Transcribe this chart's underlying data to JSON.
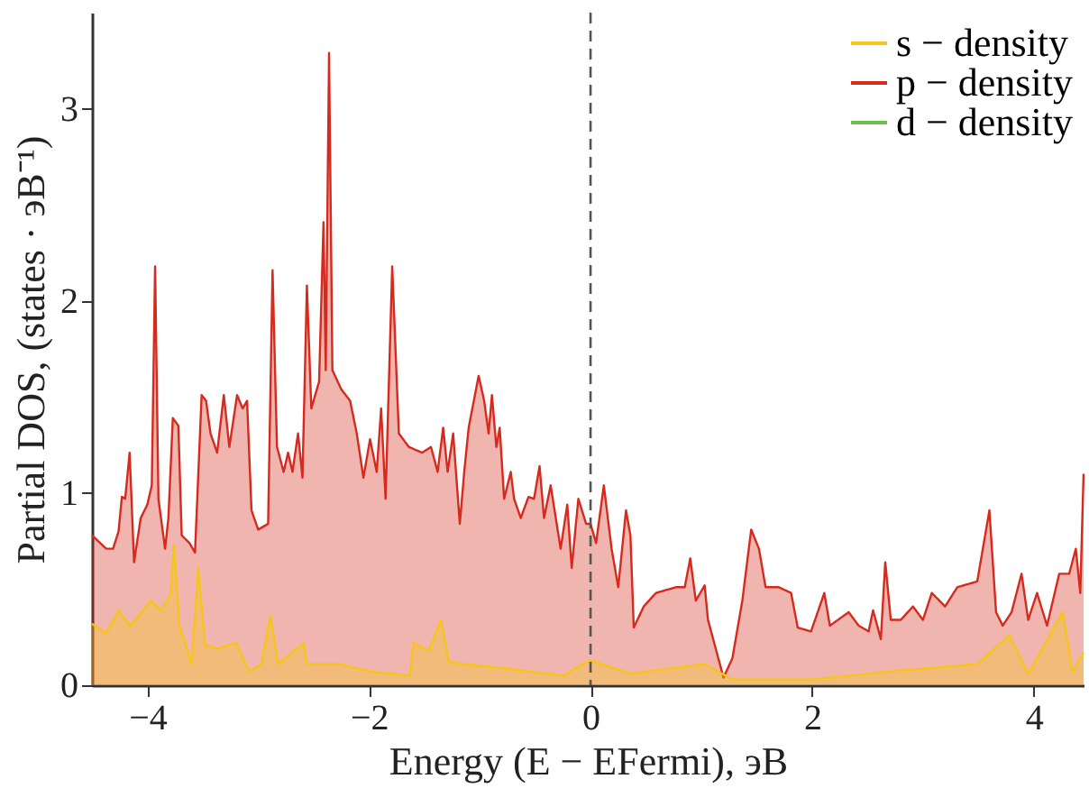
{
  "chart_data": {
    "type": "area",
    "xlabel": "Energy (E − EFermi), эВ",
    "ylabel": "Partial DOS, (states · эВ⁻¹)",
    "xlim": [
      -4.5,
      4.45
    ],
    "ylim": [
      0,
      3.5
    ],
    "xticks": [
      {
        "value": -4,
        "label": "−4"
      },
      {
        "value": -2,
        "label": "−2"
      },
      0,
      2,
      4
    ],
    "yticks": [
      0,
      1,
      2,
      3
    ],
    "grid": false,
    "legend": "top right",
    "marker": "none",
    "line_style": "solid",
    "ref_lines": [
      {
        "axis": "x",
        "value": 0,
        "label": null,
        "color": "#555555",
        "line_style": "dashed"
      }
    ],
    "series": [
      {
        "name": "s − density",
        "color": "#f5c518",
        "x": [
          -4.5,
          -4.37,
          -4.26,
          -4.16,
          -4.05,
          -3.97,
          -3.88,
          -3.79,
          -3.76,
          -3.71,
          -3.6,
          -3.54,
          -3.48,
          -3.37,
          -3.2,
          -3.08,
          -2.97,
          -2.89,
          -2.82,
          -2.59,
          -2.56,
          -2.27,
          -1.98,
          -1.63,
          -1.6,
          -1.46,
          -1.35,
          -1.28,
          -0.82,
          -0.24,
          -0.07,
          0.0,
          0.36,
          1.03,
          1.28,
          1.99,
          2.68,
          3.49,
          3.78,
          3.95,
          4.26,
          4.35,
          4.45
        ],
        "values": [
          0.32,
          0.27,
          0.39,
          0.31,
          0.38,
          0.44,
          0.39,
          0.47,
          0.73,
          0.31,
          0.11,
          0.61,
          0.21,
          0.19,
          0.22,
          0.07,
          0.11,
          0.36,
          0.11,
          0.22,
          0.11,
          0.11,
          0.07,
          0.05,
          0.22,
          0.18,
          0.34,
          0.12,
          0.09,
          0.05,
          0.11,
          0.13,
          0.06,
          0.11,
          0.03,
          0.03,
          0.07,
          0.11,
          0.26,
          0.06,
          0.38,
          0.07,
          0.17
        ]
      },
      {
        "name": "p − density",
        "color": "#d62a1e",
        "x": [
          -4.5,
          -4.37,
          -4.31,
          -4.26,
          -4.23,
          -4.2,
          -4.16,
          -4.12,
          -4.06,
          -4.0,
          -3.96,
          -3.93,
          -3.9,
          -3.84,
          -3.81,
          -3.77,
          -3.72,
          -3.69,
          -3.62,
          -3.57,
          -3.51,
          -3.47,
          -3.43,
          -3.37,
          -3.31,
          -3.26,
          -3.19,
          -3.14,
          -3.1,
          -3.06,
          -3.0,
          -2.91,
          -2.87,
          -2.83,
          -2.77,
          -2.73,
          -2.69,
          -2.64,
          -2.6,
          -2.56,
          -2.52,
          -2.45,
          -2.41,
          -2.39,
          -2.36,
          -2.33,
          -2.25,
          -2.17,
          -2.11,
          -2.05,
          -1.99,
          -1.93,
          -1.89,
          -1.85,
          -1.79,
          -1.73,
          -1.64,
          -1.52,
          -1.44,
          -1.38,
          -1.33,
          -1.29,
          -1.24,
          -1.18,
          -1.14,
          -1.1,
          -1.01,
          -0.96,
          -0.92,
          -0.89,
          -0.85,
          -0.82,
          -0.78,
          -0.72,
          -0.69,
          -0.63,
          -0.56,
          -0.51,
          -0.46,
          -0.42,
          -0.36,
          -0.27,
          -0.21,
          -0.17,
          -0.11,
          -0.04,
          0.0,
          0.05,
          0.12,
          0.19,
          0.25,
          0.32,
          0.36,
          0.39,
          0.48,
          0.59,
          0.77,
          0.85,
          0.9,
          0.95,
          1.03,
          1.06,
          1.2,
          1.28,
          1.37,
          1.45,
          1.52,
          1.58,
          1.7,
          1.81,
          1.87,
          1.99,
          2.11,
          2.16,
          2.33,
          2.42,
          2.51,
          2.55,
          2.62,
          2.66,
          2.71,
          2.8,
          2.91,
          3.0,
          3.08,
          3.2,
          3.31,
          3.49,
          3.6,
          3.66,
          3.72,
          3.8,
          3.89,
          3.95,
          4.03,
          4.12,
          4.23,
          4.32,
          4.38,
          4.42,
          4.45
        ],
        "values": [
          0.78,
          0.71,
          0.71,
          0.8,
          0.98,
          0.97,
          1.21,
          0.64,
          0.87,
          0.94,
          1.04,
          2.18,
          0.97,
          0.71,
          0.87,
          1.39,
          1.35,
          0.78,
          0.74,
          0.69,
          1.51,
          1.48,
          1.31,
          1.21,
          1.51,
          1.24,
          1.51,
          1.44,
          1.48,
          0.91,
          0.81,
          0.84,
          2.16,
          1.24,
          1.11,
          1.21,
          1.11,
          1.31,
          1.08,
          2.08,
          1.44,
          1.58,
          2.41,
          1.64,
          3.29,
          1.64,
          1.54,
          1.48,
          1.31,
          1.08,
          1.28,
          1.11,
          1.44,
          0.97,
          2.18,
          1.31,
          1.24,
          1.21,
          1.24,
          1.11,
          1.34,
          1.11,
          1.31,
          0.84,
          1.11,
          1.34,
          1.61,
          1.48,
          1.31,
          1.51,
          1.24,
          1.34,
          0.97,
          1.11,
          0.97,
          0.87,
          0.98,
          0.97,
          1.14,
          0.87,
          1.04,
          0.71,
          0.94,
          0.61,
          0.97,
          0.84,
          0.84,
          0.74,
          1.04,
          0.71,
          0.51,
          0.91,
          0.78,
          0.3,
          0.41,
          0.48,
          0.51,
          0.51,
          0.66,
          0.44,
          0.52,
          0.34,
          0.04,
          0.14,
          0.44,
          0.81,
          0.71,
          0.51,
          0.51,
          0.48,
          0.3,
          0.28,
          0.48,
          0.31,
          0.38,
          0.31,
          0.28,
          0.39,
          0.24,
          0.64,
          0.34,
          0.34,
          0.41,
          0.34,
          0.48,
          0.41,
          0.51,
          0.54,
          0.91,
          0.38,
          0.31,
          0.38,
          0.58,
          0.34,
          0.48,
          0.31,
          0.58,
          0.58,
          0.71,
          0.48,
          1.1
        ]
      },
      {
        "name": "d − density",
        "color": "#6abf4b"
      }
    ]
  }
}
